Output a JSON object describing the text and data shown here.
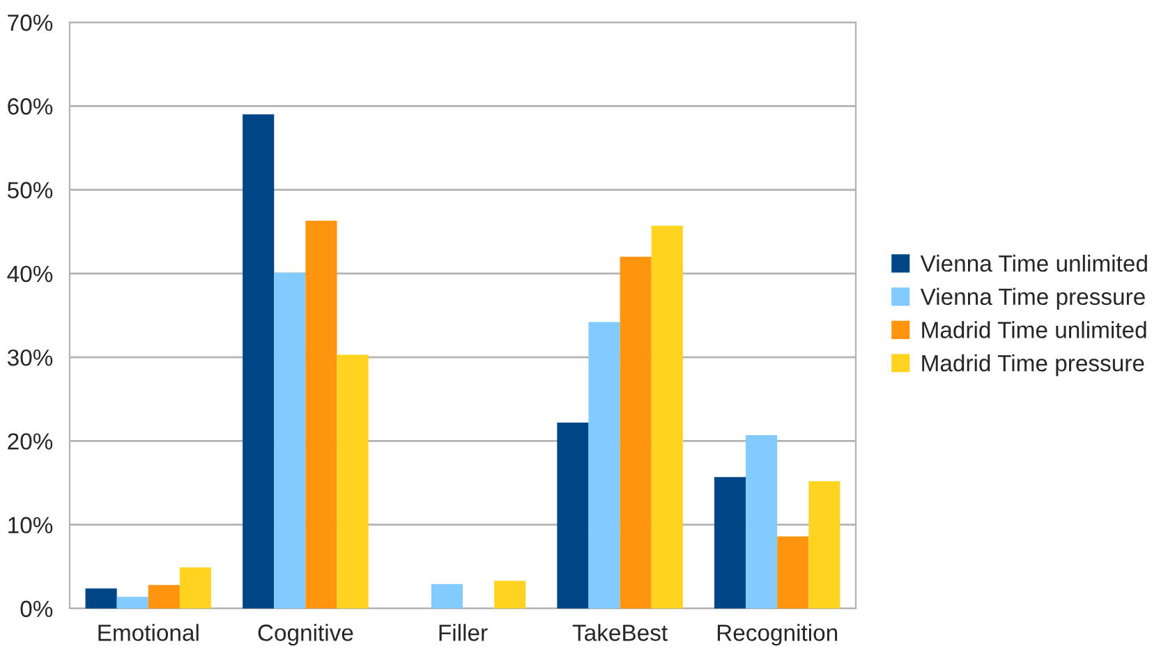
{
  "chart_data": {
    "type": "bar",
    "categories": [
      "Emotional",
      "Cognitive",
      "Filler",
      "TakeBest",
      "Recognition"
    ],
    "series": [
      {
        "name": "Vienna Time unlimited",
        "color": "#004586",
        "values": [
          2.4,
          59.0,
          0,
          22.2,
          15.7
        ]
      },
      {
        "name": "Vienna Time pressure",
        "color": "#83caff",
        "values": [
          1.4,
          40.1,
          2.9,
          34.2,
          20.7
        ]
      },
      {
        "name": "Madrid Time unlimited",
        "color": "#ff950e",
        "values": [
          2.8,
          46.3,
          0,
          42.0,
          8.6
        ]
      },
      {
        "name": "Madrid Time pressure",
        "color": "#ffd320",
        "values": [
          4.9,
          30.3,
          3.3,
          45.7,
          15.2
        ]
      }
    ],
    "ylim": [
      0,
      70
    ],
    "yticks": [
      {
        "value": 0,
        "label": "0%"
      },
      {
        "value": 10,
        "label": "10%"
      },
      {
        "value": 20,
        "label": "20%"
      },
      {
        "value": 30,
        "label": "30%"
      },
      {
        "value": 40,
        "label": "40%"
      },
      {
        "value": 50,
        "label": "50%"
      },
      {
        "value": 60,
        "label": "60%"
      },
      {
        "value": 70,
        "label": "70%"
      }
    ],
    "grid": "y",
    "legend": "right"
  }
}
